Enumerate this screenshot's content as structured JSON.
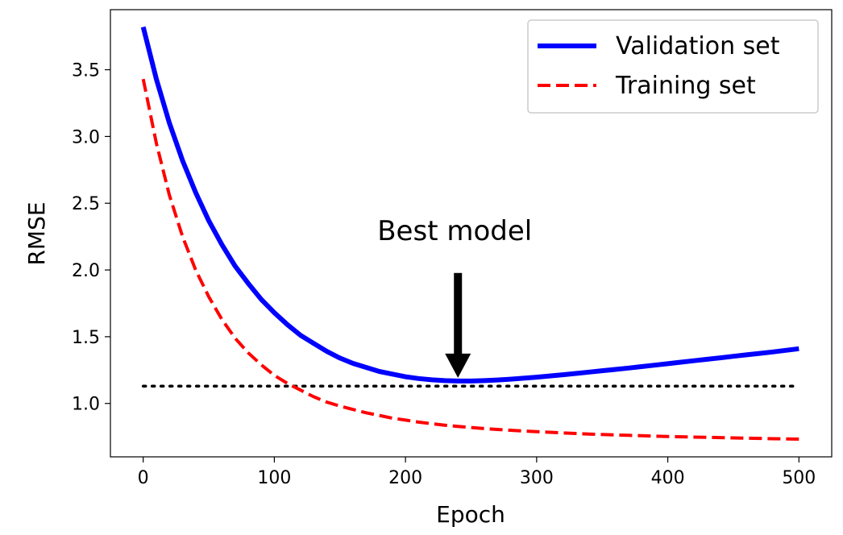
{
  "chart_data": {
    "type": "line",
    "title": "",
    "xlabel": "Epoch",
    "ylabel": "RMSE",
    "xlim": [
      -25,
      525
    ],
    "ylim": [
      0.6,
      3.95
    ],
    "xticks": [
      0,
      100,
      200,
      300,
      400,
      500
    ],
    "xtick_labels": [
      "0",
      "100",
      "200",
      "300",
      "400",
      "500"
    ],
    "yticks": [
      1.0,
      1.5,
      2.0,
      2.5,
      3.0,
      3.5
    ],
    "ytick_labels": [
      "1.0",
      "1.5",
      "2.0",
      "2.5",
      "3.0",
      "3.5"
    ],
    "grid": false,
    "legend_position": "top-right",
    "series": [
      {
        "name": "Validation set",
        "color": "#0000ff",
        "style": "solid",
        "x": [
          0,
          10,
          20,
          30,
          40,
          50,
          60,
          70,
          80,
          90,
          100,
          110,
          120,
          130,
          140,
          150,
          160,
          170,
          180,
          190,
          200,
          210,
          220,
          230,
          240,
          250,
          260,
          270,
          280,
          290,
          300,
          310,
          320,
          330,
          340,
          350,
          360,
          370,
          380,
          390,
          400,
          410,
          420,
          430,
          440,
          450,
          460,
          470,
          480,
          490,
          500
        ],
        "y": [
          3.82,
          3.43,
          3.1,
          2.82,
          2.58,
          2.37,
          2.19,
          2.03,
          1.9,
          1.78,
          1.68,
          1.59,
          1.51,
          1.45,
          1.39,
          1.34,
          1.3,
          1.27,
          1.24,
          1.22,
          1.2,
          1.187,
          1.177,
          1.171,
          1.168,
          1.168,
          1.171,
          1.176,
          1.182,
          1.189,
          1.197,
          1.206,
          1.215,
          1.225,
          1.235,
          1.245,
          1.255,
          1.265,
          1.276,
          1.287,
          1.298,
          1.309,
          1.32,
          1.331,
          1.342,
          1.353,
          1.364,
          1.375,
          1.386,
          1.398,
          1.41
        ]
      },
      {
        "name": "Training set",
        "color": "#ff0000",
        "style": "dashed",
        "x": [
          0,
          10,
          20,
          30,
          40,
          50,
          60,
          70,
          80,
          90,
          100,
          110,
          120,
          130,
          140,
          150,
          160,
          170,
          180,
          190,
          200,
          210,
          220,
          230,
          240,
          250,
          260,
          270,
          280,
          290,
          300,
          310,
          320,
          330,
          340,
          350,
          360,
          370,
          380,
          390,
          400,
          410,
          420,
          430,
          440,
          450,
          460,
          470,
          480,
          490,
          500
        ],
        "y": [
          3.43,
          2.95,
          2.56,
          2.25,
          2.0,
          1.8,
          1.63,
          1.49,
          1.38,
          1.29,
          1.21,
          1.15,
          1.1,
          1.05,
          1.01,
          0.98,
          0.955,
          0.93,
          0.91,
          0.89,
          0.875,
          0.86,
          0.848,
          0.837,
          0.828,
          0.82,
          0.812,
          0.805,
          0.799,
          0.794,
          0.789,
          0.784,
          0.779,
          0.775,
          0.771,
          0.767,
          0.764,
          0.761,
          0.758,
          0.755,
          0.752,
          0.75,
          0.748,
          0.746,
          0.744,
          0.742,
          0.74,
          0.738,
          0.736,
          0.734,
          0.733
        ]
      },
      {
        "name": "",
        "color": "#000000",
        "style": "dotted",
        "x": [
          0,
          500
        ],
        "y": [
          1.13,
          1.13
        ]
      }
    ],
    "annotations": [
      {
        "text": "Best model",
        "point": [
          240,
          1.168
        ],
        "text_at": [
          240,
          2.05
        ]
      }
    ]
  }
}
